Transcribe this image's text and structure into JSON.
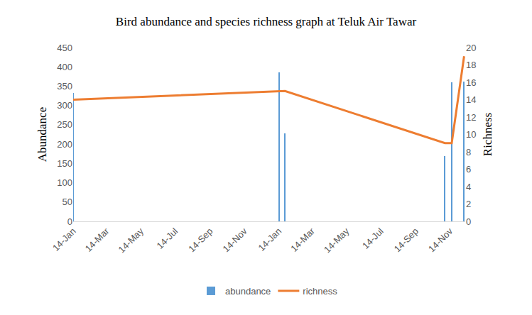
{
  "chart_data": {
    "type": "bar",
    "title": "Bird abundance and species richness graph at Teluk Air Tawar",
    "ylabel": "Abundance",
    "y2label": "Richness",
    "x": [
      0,
      366,
      376,
      660,
      672,
      694
    ],
    "xlim": [
      0,
      696
    ],
    "xticks": [
      {
        "value": 0,
        "label": "14-Jan"
      },
      {
        "value": 59,
        "label": "14-Mar"
      },
      {
        "value": 120,
        "label": "14-May"
      },
      {
        "value": 181,
        "label": "14-Jul"
      },
      {
        "value": 243,
        "label": "14-Sep"
      },
      {
        "value": 304,
        "label": "14-Nov"
      },
      {
        "value": 365,
        "label": "14-Jan"
      },
      {
        "value": 424,
        "label": "14-Mar"
      },
      {
        "value": 485,
        "label": "14-May"
      },
      {
        "value": 546,
        "label": "14-Jul"
      },
      {
        "value": 608,
        "label": "14-Sep"
      },
      {
        "value": 669,
        "label": "14-Nov"
      }
    ],
    "ylim": [
      0,
      450
    ],
    "yticks": [
      0,
      50,
      100,
      150,
      200,
      250,
      300,
      350,
      400,
      450
    ],
    "y2lim": [
      0,
      20
    ],
    "y2ticks": [
      0,
      2,
      4,
      6,
      8,
      10,
      12,
      14,
      16,
      18,
      20
    ],
    "grid": false,
    "legend": "bottom",
    "series": [
      {
        "name": "abundance",
        "type": "bar",
        "color": "#5b9bd5",
        "values": [
          332,
          386,
          228,
          169,
          360,
          362
        ]
      },
      {
        "name": "richness",
        "type": "line",
        "axis": "y2",
        "color": "#ed7d31",
        "values": [
          14,
          15,
          15,
          9,
          9,
          19
        ]
      }
    ]
  }
}
